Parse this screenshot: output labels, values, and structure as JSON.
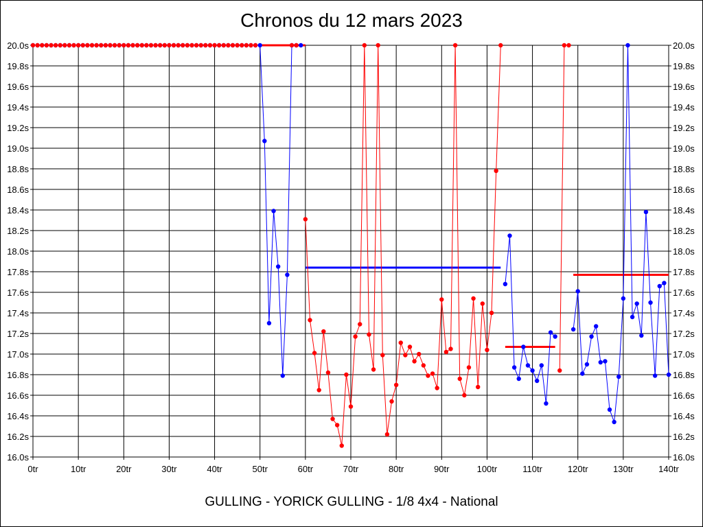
{
  "title": "Chronos du 12 mars 2023",
  "subtitle": "GULLING - YORICK GULLING - 1/8 4x4 - National",
  "colors": {
    "red": "#ff0000",
    "blue": "#0000ff",
    "grid": "#000000",
    "background": "#ffffff"
  },
  "chart_data": {
    "type": "line",
    "title": "Chronos du 12 mars 2023",
    "xlabel": "",
    "ylabel": "",
    "xlim": [
      0,
      140
    ],
    "ylim": [
      16.0,
      20.0
    ],
    "grid": true,
    "x_ticks": [
      0,
      10,
      20,
      30,
      40,
      50,
      60,
      70,
      80,
      90,
      100,
      110,
      120,
      130,
      140
    ],
    "x_tick_labels": [
      "0tr",
      "10tr",
      "20tr",
      "30tr",
      "40tr",
      "50tr",
      "60tr",
      "70tr",
      "80tr",
      "90tr",
      "100tr",
      "110tr",
      "120tr",
      "130tr",
      "140tr"
    ],
    "y_ticks": [
      16.0,
      16.2,
      16.4,
      16.6,
      16.8,
      17.0,
      17.2,
      17.4,
      17.6,
      17.8,
      18.0,
      18.2,
      18.4,
      18.6,
      18.8,
      19.0,
      19.2,
      19.4,
      19.6,
      19.8,
      20.0
    ],
    "y_tick_labels": [
      "16.0s",
      "16.2s",
      "16.4s",
      "16.6s",
      "16.8s",
      "17.0s",
      "17.2s",
      "17.4s",
      "17.6s",
      "17.8s",
      "18.0s",
      "18.2s",
      "18.4s",
      "18.6s",
      "18.8s",
      "19.0s",
      "19.2s",
      "19.4s",
      "19.6s",
      "19.8s",
      "20.0s"
    ],
    "series": [
      {
        "color": "#0000ff",
        "segments": [
          [
            [
              0,
              20.0
            ],
            [
              1,
              20.0
            ],
            [
              2,
              20.0
            ],
            [
              3,
              20.0
            ],
            [
              4,
              20.0
            ],
            [
              5,
              20.0
            ],
            [
              6,
              20.0
            ],
            [
              7,
              20.0
            ],
            [
              8,
              20.0
            ],
            [
              9,
              20.0
            ],
            [
              10,
              20.0
            ],
            [
              11,
              20.0
            ],
            [
              12,
              20.0
            ],
            [
              13,
              20.0
            ],
            [
              14,
              20.0
            ],
            [
              15,
              20.0
            ],
            [
              16,
              20.0
            ],
            [
              17,
              20.0
            ],
            [
              18,
              20.0
            ],
            [
              19,
              20.0
            ],
            [
              20,
              20.0
            ],
            [
              21,
              20.0
            ],
            [
              22,
              20.0
            ],
            [
              23,
              20.0
            ],
            [
              24,
              20.0
            ],
            [
              25,
              20.0
            ],
            [
              26,
              20.0
            ],
            [
              27,
              20.0
            ],
            [
              28,
              20.0
            ],
            [
              29,
              20.0
            ],
            [
              30,
              20.0
            ],
            [
              31,
              20.0
            ],
            [
              32,
              20.0
            ],
            [
              33,
              20.0
            ],
            [
              34,
              20.0
            ],
            [
              35,
              20.0
            ],
            [
              36,
              20.0
            ],
            [
              37,
              20.0
            ],
            [
              38,
              20.0
            ],
            [
              39,
              20.0
            ],
            [
              40,
              20.0
            ],
            [
              41,
              20.0
            ],
            [
              42,
              20.0
            ],
            [
              43,
              20.0
            ],
            [
              44,
              20.0
            ],
            [
              45,
              20.0
            ],
            [
              46,
              20.0
            ],
            [
              47,
              20.0
            ],
            [
              48,
              20.0
            ],
            [
              49,
              20.0
            ],
            [
              50,
              20.0
            ],
            [
              51,
              19.07
            ],
            [
              52,
              17.3
            ],
            [
              53,
              18.39
            ],
            [
              54,
              17.85
            ],
            [
              55,
              16.79
            ],
            [
              56,
              17.77
            ],
            [
              57,
              20.0
            ],
            [
              58,
              20.0
            ],
            [
              59,
              20.0
            ]
          ],
          [
            [
              104,
              17.68
            ],
            [
              105,
              18.15
            ],
            [
              106,
              16.87
            ],
            [
              107,
              16.76
            ],
            [
              108,
              17.07
            ],
            [
              109,
              16.89
            ],
            [
              110,
              16.84
            ],
            [
              111,
              16.74
            ],
            [
              112,
              16.89
            ],
            [
              113,
              16.52
            ],
            [
              114,
              17.21
            ],
            [
              115,
              17.17
            ]
          ],
          [
            [
              119,
              17.24
            ],
            [
              120,
              17.61
            ],
            [
              121,
              16.81
            ],
            [
              122,
              16.9
            ],
            [
              123,
              17.17
            ],
            [
              124,
              17.27
            ],
            [
              125,
              16.92
            ],
            [
              126,
              16.93
            ],
            [
              127,
              16.46
            ],
            [
              128,
              16.34
            ],
            [
              129,
              16.78
            ],
            [
              130,
              17.54
            ],
            [
              131,
              20.0
            ],
            [
              132,
              17.36
            ],
            [
              133,
              17.49
            ],
            [
              134,
              17.18
            ],
            [
              135,
              18.38
            ],
            [
              136,
              17.5
            ],
            [
              137,
              16.79
            ],
            [
              138,
              17.66
            ],
            [
              139,
              17.69
            ],
            [
              140,
              16.8
            ]
          ]
        ]
      },
      {
        "color": "#ff0000",
        "segments": [
          [
            [
              0,
              20.0
            ],
            [
              1,
              20.0
            ],
            [
              2,
              20.0
            ],
            [
              3,
              20.0
            ],
            [
              4,
              20.0
            ],
            [
              5,
              20.0
            ],
            [
              6,
              20.0
            ],
            [
              7,
              20.0
            ],
            [
              8,
              20.0
            ],
            [
              9,
              20.0
            ],
            [
              10,
              20.0
            ],
            [
              11,
              20.0
            ],
            [
              12,
              20.0
            ],
            [
              13,
              20.0
            ],
            [
              14,
              20.0
            ],
            [
              15,
              20.0
            ],
            [
              16,
              20.0
            ],
            [
              17,
              20.0
            ],
            [
              18,
              20.0
            ],
            [
              19,
              20.0
            ],
            [
              20,
              20.0
            ],
            [
              21,
              20.0
            ],
            [
              22,
              20.0
            ],
            [
              23,
              20.0
            ],
            [
              24,
              20.0
            ],
            [
              25,
              20.0
            ],
            [
              26,
              20.0
            ],
            [
              27,
              20.0
            ],
            [
              28,
              20.0
            ],
            [
              29,
              20.0
            ],
            [
              30,
              20.0
            ],
            [
              31,
              20.0
            ],
            [
              32,
              20.0
            ],
            [
              33,
              20.0
            ],
            [
              34,
              20.0
            ],
            [
              35,
              20.0
            ],
            [
              36,
              20.0
            ],
            [
              37,
              20.0
            ],
            [
              38,
              20.0
            ],
            [
              39,
              20.0
            ],
            [
              40,
              20.0
            ],
            [
              41,
              20.0
            ],
            [
              42,
              20.0
            ],
            [
              43,
              20.0
            ],
            [
              44,
              20.0
            ],
            [
              45,
              20.0
            ],
            [
              46,
              20.0
            ],
            [
              47,
              20.0
            ],
            [
              48,
              20.0
            ],
            [
              49,
              20.0
            ]
          ],
          [
            [
              57,
              20.0
            ],
            [
              58,
              20.0
            ]
          ],
          [
            [
              60,
              18.31
            ],
            [
              61,
              17.33
            ],
            [
              62,
              17.01
            ],
            [
              63,
              16.65
            ],
            [
              64,
              17.22
            ],
            [
              65,
              16.82
            ],
            [
              66,
              16.37
            ],
            [
              67,
              16.31
            ],
            [
              68,
              16.11
            ],
            [
              69,
              16.8
            ],
            [
              70,
              16.49
            ],
            [
              71,
              17.17
            ],
            [
              72,
              17.29
            ],
            [
              73,
              20.0
            ],
            [
              74,
              17.19
            ],
            [
              75,
              16.85
            ],
            [
              76,
              20.0
            ],
            [
              77,
              16.99
            ],
            [
              78,
              16.22
            ],
            [
              79,
              16.54
            ],
            [
              80,
              16.7
            ],
            [
              81,
              17.11
            ],
            [
              82,
              16.99
            ],
            [
              83,
              17.07
            ],
            [
              84,
              16.93
            ],
            [
              85,
              17.0
            ],
            [
              86,
              16.89
            ],
            [
              87,
              16.79
            ],
            [
              88,
              16.81
            ],
            [
              89,
              16.67
            ],
            [
              90,
              17.53
            ],
            [
              91,
              17.02
            ],
            [
              92,
              17.05
            ],
            [
              93,
              20.0
            ],
            [
              94,
              16.76
            ],
            [
              95,
              16.6
            ],
            [
              96,
              16.87
            ],
            [
              97,
              17.54
            ],
            [
              98,
              16.68
            ],
            [
              99,
              17.49
            ],
            [
              100,
              17.04
            ],
            [
              101,
              17.4
            ],
            [
              102,
              18.78
            ],
            [
              103,
              20.0
            ]
          ],
          [
            [
              116,
              16.84
            ],
            [
              117,
              20.0
            ],
            [
              118,
              20.0
            ]
          ]
        ]
      }
    ],
    "reference_lines": [
      {
        "color": "#ff0000",
        "x_start": 50,
        "x_end": 60,
        "y": 20.0
      },
      {
        "color": "#0000ff",
        "x_start": 60,
        "x_end": 103,
        "y": 17.84
      },
      {
        "color": "#ff0000",
        "x_start": 104,
        "x_end": 115,
        "y": 17.07
      },
      {
        "color": "#ff0000",
        "x_start": 119,
        "x_end": 140,
        "y": 17.77
      }
    ]
  }
}
